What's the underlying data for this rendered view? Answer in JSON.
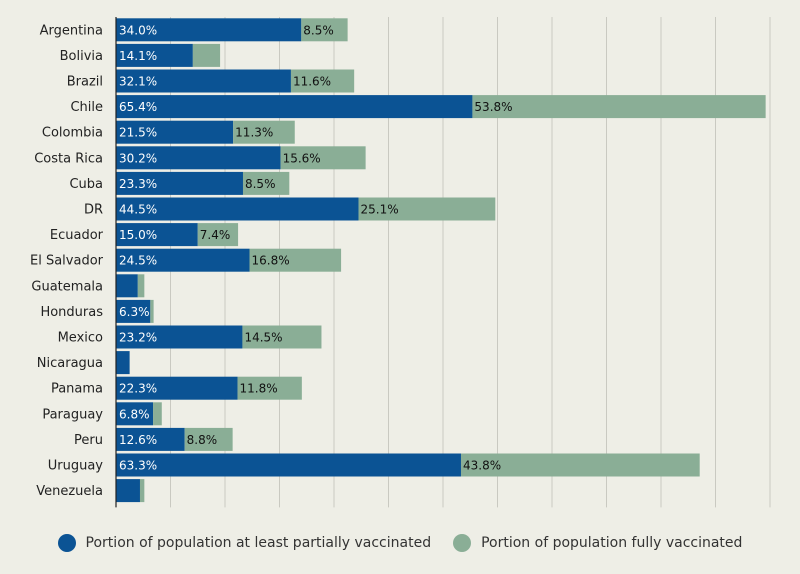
{
  "chart_data": {
    "type": "bar",
    "orientation": "horizontal",
    "stacked": true,
    "categories": [
      "Argentina",
      "Bolivia",
      "Brazil",
      "Chile",
      "Colombia",
      "Costa Rica",
      "Cuba",
      "DR",
      "Ecuador",
      "El Salvador",
      "Guatemala",
      "Honduras",
      "Mexico",
      "Nicaragua",
      "Panama",
      "Paraguay",
      "Peru",
      "Uruguay",
      "Venezuela"
    ],
    "series": [
      {
        "name": "Portion of population at least partially vaccinated",
        "color": "#0b5394",
        "values": [
          34.0,
          14.1,
          32.1,
          65.4,
          21.5,
          30.2,
          23.3,
          44.5,
          15.0,
          24.5,
          4.0,
          6.3,
          23.2,
          2.5,
          22.3,
          6.8,
          12.6,
          63.3,
          4.4
        ],
        "labels": [
          "34.0%",
          "14.1%",
          "32.1%",
          "65.4%",
          "21.5%",
          "30.2%",
          "23.3%",
          "44.5%",
          "15.0%",
          "24.5%",
          "",
          "6.3%",
          "23.2%",
          "",
          "22.3%",
          "6.8%",
          "12.6%",
          "63.3%",
          ""
        ]
      },
      {
        "name": "Portion of population fully vaccinated",
        "color": "#8aae96",
        "values": [
          8.5,
          5.0,
          11.6,
          53.8,
          11.3,
          15.6,
          8.5,
          25.1,
          7.4,
          16.8,
          1.2,
          0.6,
          14.5,
          0,
          11.8,
          1.6,
          8.8,
          43.8,
          0.8
        ],
        "labels": [
          "8.5%",
          "",
          "11.6%",
          "53.8%",
          "11.3%",
          "15.6%",
          "8.5%",
          "25.1%",
          "7.4%",
          "16.8%",
          "",
          "",
          "14.5%",
          "",
          "11.8%",
          "",
          "8.8%",
          "43.8%",
          ""
        ]
      }
    ],
    "xlim": [
      0,
      120
    ],
    "x_tick_step": 10,
    "x_tick_labels_shown": false,
    "grid": true,
    "legend_position": "bottom"
  }
}
